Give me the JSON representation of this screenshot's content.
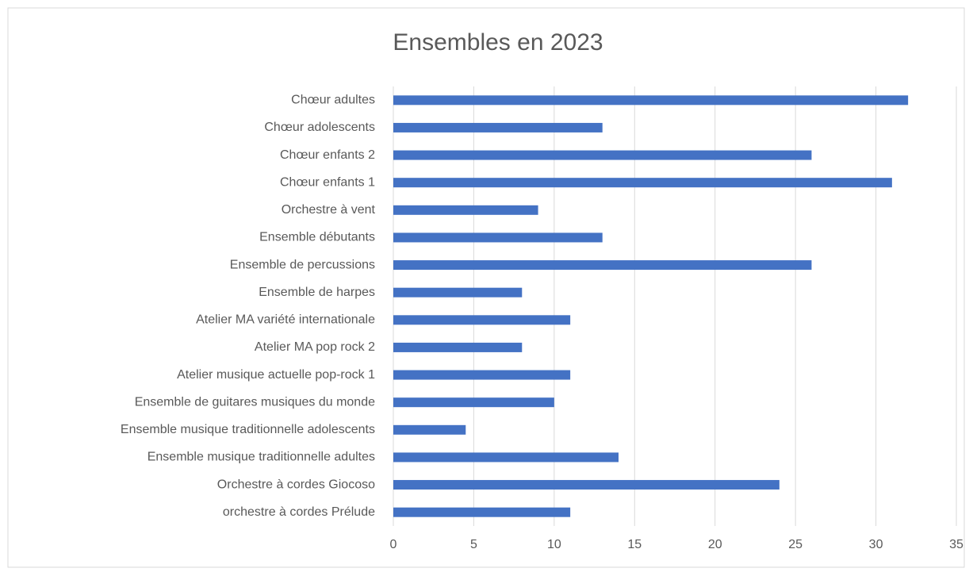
{
  "chart_data": {
    "type": "hbar",
    "title": "Ensembles en 2023",
    "categories": [
      "Chœur adultes",
      "Chœur adolescents",
      "Chœur enfants 2",
      "Chœur enfants 1",
      "Orchestre à vent",
      "Ensemble débutants",
      "Ensemble de percussions",
      "Ensemble de harpes",
      "Atelier MA variété internationale",
      "Atelier MA pop rock 2",
      "Atelier musique actuelle pop-rock 1",
      "Ensemble de guitares musiques du monde",
      "Ensemble musique traditionnelle adolescents",
      "Ensemble musique traditionnelle adultes",
      "Orchestre à cordes Giocoso",
      "orchestre à cordes Prélude"
    ],
    "values": [
      32,
      13,
      26,
      31,
      9,
      13,
      26,
      8,
      11,
      8,
      11,
      10,
      4.5,
      14,
      24,
      11
    ],
    "color": "#4472c4",
    "xlim": [
      0,
      35
    ],
    "xticks": [
      0,
      5,
      10,
      15,
      20,
      25,
      30,
      35
    ],
    "grid": true
  }
}
